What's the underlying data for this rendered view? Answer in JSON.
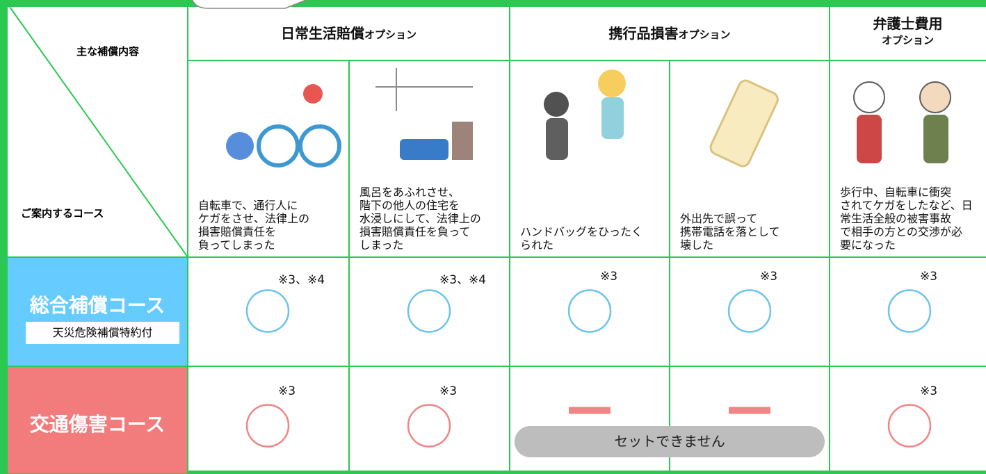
{
  "header": {
    "main_coverage_label": "主な補償内容",
    "course_label": "ご案内するコース"
  },
  "options": [
    {
      "name": "日常生活賠償",
      "suffix": "オプション"
    },
    {
      "name": "携行品損害",
      "suffix": "オプション"
    },
    {
      "name": "弁護士費用",
      "suffix": "オプション"
    }
  ],
  "cases": [
    "自転車で、通行人に\nケガをさせ、法律上の\n損害賠償責任を\n負ってしまった",
    "風呂をあふれさせ、\n階下の他人の住宅を\n水浸しにして、法律上の\n損害賠償責任を負って\nしまった",
    "ハンドバッグをひったく\nられた",
    "外出先で誤って\n携帯電話を落として\n壊した",
    "歩行中、自転車に衝突\nされてケガをしたなど、日\n常生活全般の被害事故\nで相手の方との交渉が必\n要になった"
  ],
  "courses": [
    {
      "name": "総合補償コース",
      "badge": "天災危険補償特約付",
      "color": "#66ccff",
      "mark_color": "#6cc3ee",
      "cells": [
        {
          "note": "※3、※4"
        },
        {
          "note": "※3、※4"
        },
        {
          "note": "※3"
        },
        {
          "note": "※3"
        },
        {
          "note": "※3"
        }
      ]
    },
    {
      "name": "交通傷害コース",
      "color": "#f27b7b",
      "mark_color": "#f08585",
      "cells": [
        {
          "note": "※3"
        },
        {
          "note": "※3"
        },
        {
          "available": false
        },
        {
          "available": false
        },
        {
          "note": "※3"
        }
      ]
    }
  ],
  "unavailable_label": "セットできません"
}
